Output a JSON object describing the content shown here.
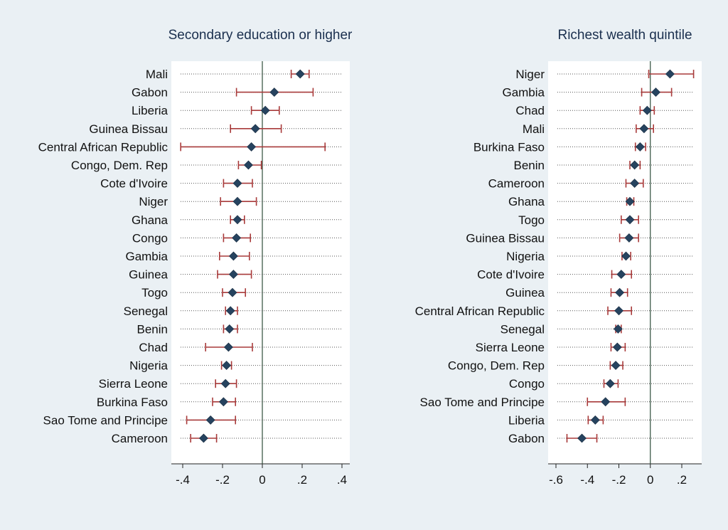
{
  "chart_data": [
    {
      "type": "scatter",
      "title": "Secondary education or higher",
      "xlabel": "",
      "ylabel": "",
      "xlim": [
        -0.45,
        0.45
      ],
      "xticks": [
        -0.4,
        -0.2,
        0,
        0.2,
        0.4
      ],
      "xtick_labels": [
        "-.4",
        "-.2",
        "0",
        ".2",
        ".4"
      ],
      "reference_line": 0,
      "series": [
        {
          "points": [
            {
              "label": "Mali",
              "estimate": 0.19,
              "ci_low": 0.145,
              "ci_high": 0.235
            },
            {
              "label": "Gabon",
              "estimate": 0.06,
              "ci_low": -0.13,
              "ci_high": 0.255
            },
            {
              "label": "Liberia",
              "estimate": 0.015,
              "ci_low": -0.055,
              "ci_high": 0.085
            },
            {
              "label": "Guinea Bissau",
              "estimate": -0.035,
              "ci_low": -0.16,
              "ci_high": 0.095
            },
            {
              "label": "Central African Republic",
              "estimate": -0.055,
              "ci_low": -0.41,
              "ci_high": 0.315
            },
            {
              "label": "Congo, Dem. Rep",
              "estimate": -0.07,
              "ci_low": -0.12,
              "ci_high": -0.005
            },
            {
              "label": "Cote d'Ivoire",
              "estimate": -0.125,
              "ci_low": -0.195,
              "ci_high": -0.05
            },
            {
              "label": "Niger",
              "estimate": -0.125,
              "ci_low": -0.21,
              "ci_high": -0.03
            },
            {
              "label": "Ghana",
              "estimate": -0.125,
              "ci_low": -0.16,
              "ci_high": -0.09
            },
            {
              "label": "Congo",
              "estimate": -0.13,
              "ci_low": -0.195,
              "ci_high": -0.06
            },
            {
              "label": "Gambia",
              "estimate": -0.145,
              "ci_low": -0.215,
              "ci_high": -0.065
            },
            {
              "label": "Guinea",
              "estimate": -0.145,
              "ci_low": -0.225,
              "ci_high": -0.055
            },
            {
              "label": "Togo",
              "estimate": -0.15,
              "ci_low": -0.2,
              "ci_high": -0.085
            },
            {
              "label": "Senegal",
              "estimate": -0.16,
              "ci_low": -0.185,
              "ci_high": -0.125
            },
            {
              "label": "Benin",
              "estimate": -0.165,
              "ci_low": -0.195,
              "ci_high": -0.125
            },
            {
              "label": "Chad",
              "estimate": -0.17,
              "ci_low": -0.285,
              "ci_high": -0.05
            },
            {
              "label": "Nigeria",
              "estimate": -0.18,
              "ci_low": -0.205,
              "ci_high": -0.155
            },
            {
              "label": "Sierra Leone",
              "estimate": -0.185,
              "ci_low": -0.235,
              "ci_high": -0.13
            },
            {
              "label": "Burkina Faso",
              "estimate": -0.195,
              "ci_low": -0.25,
              "ci_high": -0.135
            },
            {
              "label": "Sao Tome and Principe",
              "estimate": -0.26,
              "ci_low": -0.38,
              "ci_high": -0.135
            },
            {
              "label": "Cameroon",
              "estimate": -0.295,
              "ci_low": -0.36,
              "ci_high": -0.23
            }
          ]
        }
      ]
    },
    {
      "type": "scatter",
      "title": "Richest wealth quintile",
      "xlabel": "",
      "ylabel": "",
      "xlim": [
        -0.65,
        0.33
      ],
      "xticks": [
        -0.6,
        -0.4,
        -0.2,
        0,
        0.2
      ],
      "xtick_labels": [
        "-.6",
        "-.4",
        "-.2",
        "0",
        ".2"
      ],
      "reference_line": 0,
      "series": [
        {
          "points": [
            {
              "label": "Niger",
              "estimate": 0.125,
              "ci_low": -0.01,
              "ci_high": 0.275
            },
            {
              "label": "Gambia",
              "estimate": 0.035,
              "ci_low": -0.055,
              "ci_high": 0.135
            },
            {
              "label": "Chad",
              "estimate": -0.02,
              "ci_low": -0.065,
              "ci_high": 0.025
            },
            {
              "label": "Mali",
              "estimate": -0.04,
              "ci_low": -0.09,
              "ci_high": 0.02
            },
            {
              "label": "Burkina Faso",
              "estimate": -0.065,
              "ci_low": -0.095,
              "ci_high": -0.03
            },
            {
              "label": "Benin",
              "estimate": -0.1,
              "ci_low": -0.13,
              "ci_high": -0.065
            },
            {
              "label": "Cameroon",
              "estimate": -0.1,
              "ci_low": -0.155,
              "ci_high": -0.045
            },
            {
              "label": "Ghana",
              "estimate": -0.13,
              "ci_low": -0.15,
              "ci_high": -0.105
            },
            {
              "label": "Togo",
              "estimate": -0.13,
              "ci_low": -0.185,
              "ci_high": -0.075
            },
            {
              "label": "Guinea Bissau",
              "estimate": -0.135,
              "ci_low": -0.195,
              "ci_high": -0.075
            },
            {
              "label": "Nigeria",
              "estimate": -0.155,
              "ci_low": -0.18,
              "ci_high": -0.125
            },
            {
              "label": "Cote d'Ivoire",
              "estimate": -0.185,
              "ci_low": -0.245,
              "ci_high": -0.12
            },
            {
              "label": "Guinea",
              "estimate": -0.195,
              "ci_low": -0.25,
              "ci_high": -0.145
            },
            {
              "label": "Central African Republic",
              "estimate": -0.2,
              "ci_low": -0.27,
              "ci_high": -0.12
            },
            {
              "label": "Senegal",
              "estimate": -0.205,
              "ci_low": -0.22,
              "ci_high": -0.185
            },
            {
              "label": "Sierra Leone",
              "estimate": -0.21,
              "ci_low": -0.25,
              "ci_high": -0.16
            },
            {
              "label": "Congo, Dem. Rep",
              "estimate": -0.22,
              "ci_low": -0.255,
              "ci_high": -0.175
            },
            {
              "label": "Congo",
              "estimate": -0.255,
              "ci_low": -0.295,
              "ci_high": -0.205
            },
            {
              "label": "Sao Tome and Principe",
              "estimate": -0.285,
              "ci_low": -0.4,
              "ci_high": -0.16
            },
            {
              "label": "Liberia",
              "estimate": -0.35,
              "ci_low": -0.395,
              "ci_high": -0.3
            },
            {
              "label": "Gabon",
              "estimate": -0.435,
              "ci_low": -0.53,
              "ci_high": -0.34
            }
          ]
        }
      ]
    }
  ],
  "colors": {
    "background": "#eaf0f4",
    "panel": "#ffffff",
    "marker": "#26435f",
    "ci": "#a83a3a",
    "reference_line": "#2e4d3a",
    "title": "#1a2f4e"
  }
}
